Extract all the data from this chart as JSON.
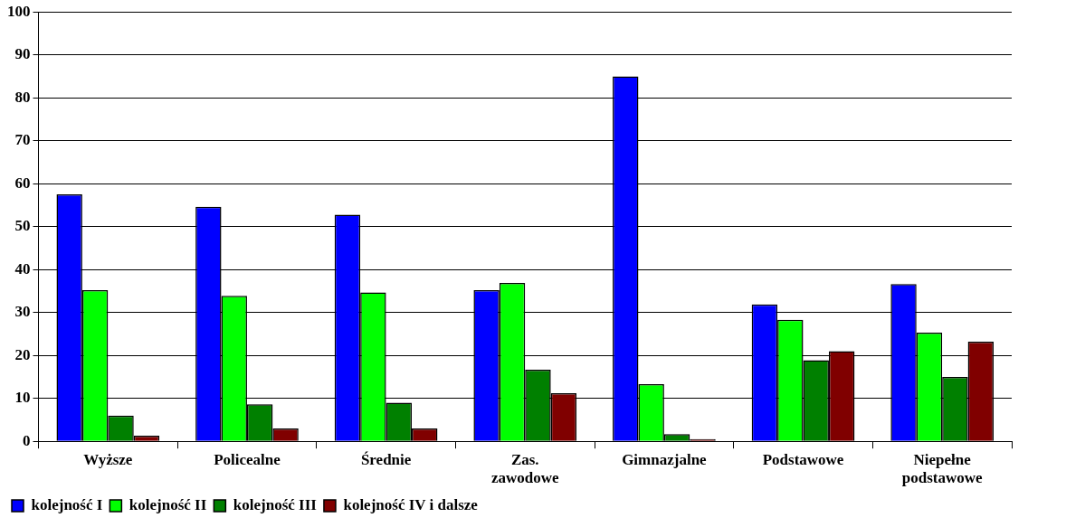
{
  "chart_data": {
    "type": "bar",
    "categories": [
      "Wyższe",
      "Policealne",
      "Średnie",
      "Zas. zawodowe",
      "Gimnazjalne",
      "Podstawowe",
      "Niepełne podstawowe"
    ],
    "series": [
      {
        "name": "kolejność I",
        "color": "#0000ff",
        "values": [
          57.5,
          54.6,
          52.8,
          35.2,
          85,
          31.9,
          36.6
        ]
      },
      {
        "name": "kolejność II",
        "color": "#00ff00",
        "values": [
          35.2,
          33.9,
          34.7,
          36.9,
          13.3,
          28.3,
          25.3
        ]
      },
      {
        "name": "kolejność III",
        "color": "#008000",
        "values": [
          6,
          8.6,
          9,
          16.7,
          1.7,
          18.9,
          15
        ]
      },
      {
        "name": "kolejność IV i dalsze",
        "color": "#800000",
        "values": [
          1.3,
          3,
          3,
          11.2,
          0.5,
          21,
          23.2
        ]
      }
    ],
    "ylim": [
      0,
      100
    ],
    "yticks": [
      0,
      10,
      20,
      30,
      40,
      50,
      60,
      70,
      80,
      90,
      100
    ],
    "grid": "y",
    "legend": "bottom left"
  }
}
